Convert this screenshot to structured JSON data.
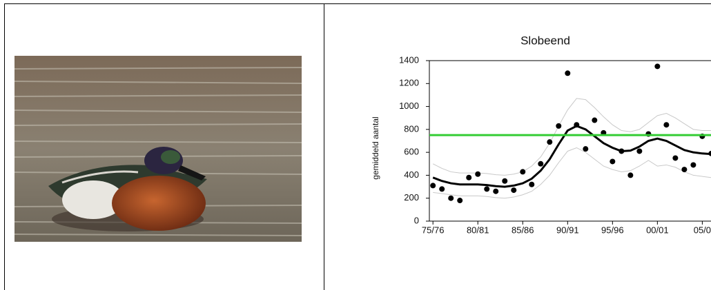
{
  "chart_data": {
    "type": "scatter",
    "title": "Slobeend",
    "y_label": "gemiddeld aantal",
    "x": [
      75,
      76,
      77,
      78,
      79,
      80,
      81,
      82,
      83,
      84,
      85,
      86,
      87,
      88,
      89,
      90,
      91,
      92,
      93,
      94,
      95,
      96,
      97,
      98,
      99,
      100,
      101,
      102,
      103,
      104,
      105,
      106
    ],
    "series": [
      {
        "type": "scatter",
        "color": "#000000",
        "values": [
          310,
          280,
          200,
          180,
          380,
          410,
          280,
          260,
          350,
          270,
          430,
          320,
          500,
          690,
          830,
          1290,
          840,
          630,
          880,
          770,
          520,
          610,
          400,
          610,
          760,
          1350,
          840,
          550,
          450,
          490,
          740,
          590
        ]
      },
      {
        "type": "line",
        "color": "#000000",
        "values": [
          380,
          350,
          330,
          320,
          320,
          320,
          315,
          305,
          300,
          310,
          330,
          370,
          440,
          540,
          670,
          790,
          830,
          800,
          740,
          680,
          640,
          610,
          615,
          650,
          700,
          720,
          700,
          660,
          620,
          600,
          590,
          585
        ]
      },
      {
        "type": "line",
        "color": "#c8c8c8",
        "values": [
          500,
          460,
          430,
          420,
          420,
          420,
          415,
          405,
          400,
          410,
          430,
          480,
          560,
          680,
          830,
          970,
          1070,
          1060,
          990,
          910,
          840,
          790,
          780,
          800,
          860,
          920,
          940,
          900,
          850,
          800,
          790,
          790
        ]
      },
      {
        "type": "line",
        "color": "#c8c8c8",
        "values": [
          250,
          240,
          230,
          220,
          220,
          220,
          215,
          205,
          200,
          210,
          230,
          260,
          320,
          400,
          510,
          610,
          640,
          600,
          540,
          480,
          450,
          430,
          440,
          480,
          530,
          480,
          490,
          470,
          430,
          400,
          390,
          380
        ]
      }
    ],
    "hline": 750,
    "hline_color": "#33cc33",
    "xlim": [
      74.6,
      107.2
    ],
    "xticks": [
      {
        "value": 75,
        "label": "75/76"
      },
      {
        "value": 80,
        "label": "80/81"
      },
      {
        "value": 85,
        "label": "85/86"
      },
      {
        "value": 90,
        "label": "90/91"
      },
      {
        "value": 95,
        "label": "95/96"
      },
      {
        "value": 100,
        "label": "00/01"
      },
      {
        "value": 105,
        "label": "05/0"
      }
    ],
    "ylim": [
      0,
      1400
    ],
    "yticks": [
      0,
      200,
      400,
      600,
      800,
      1000,
      1200,
      1400
    ]
  }
}
